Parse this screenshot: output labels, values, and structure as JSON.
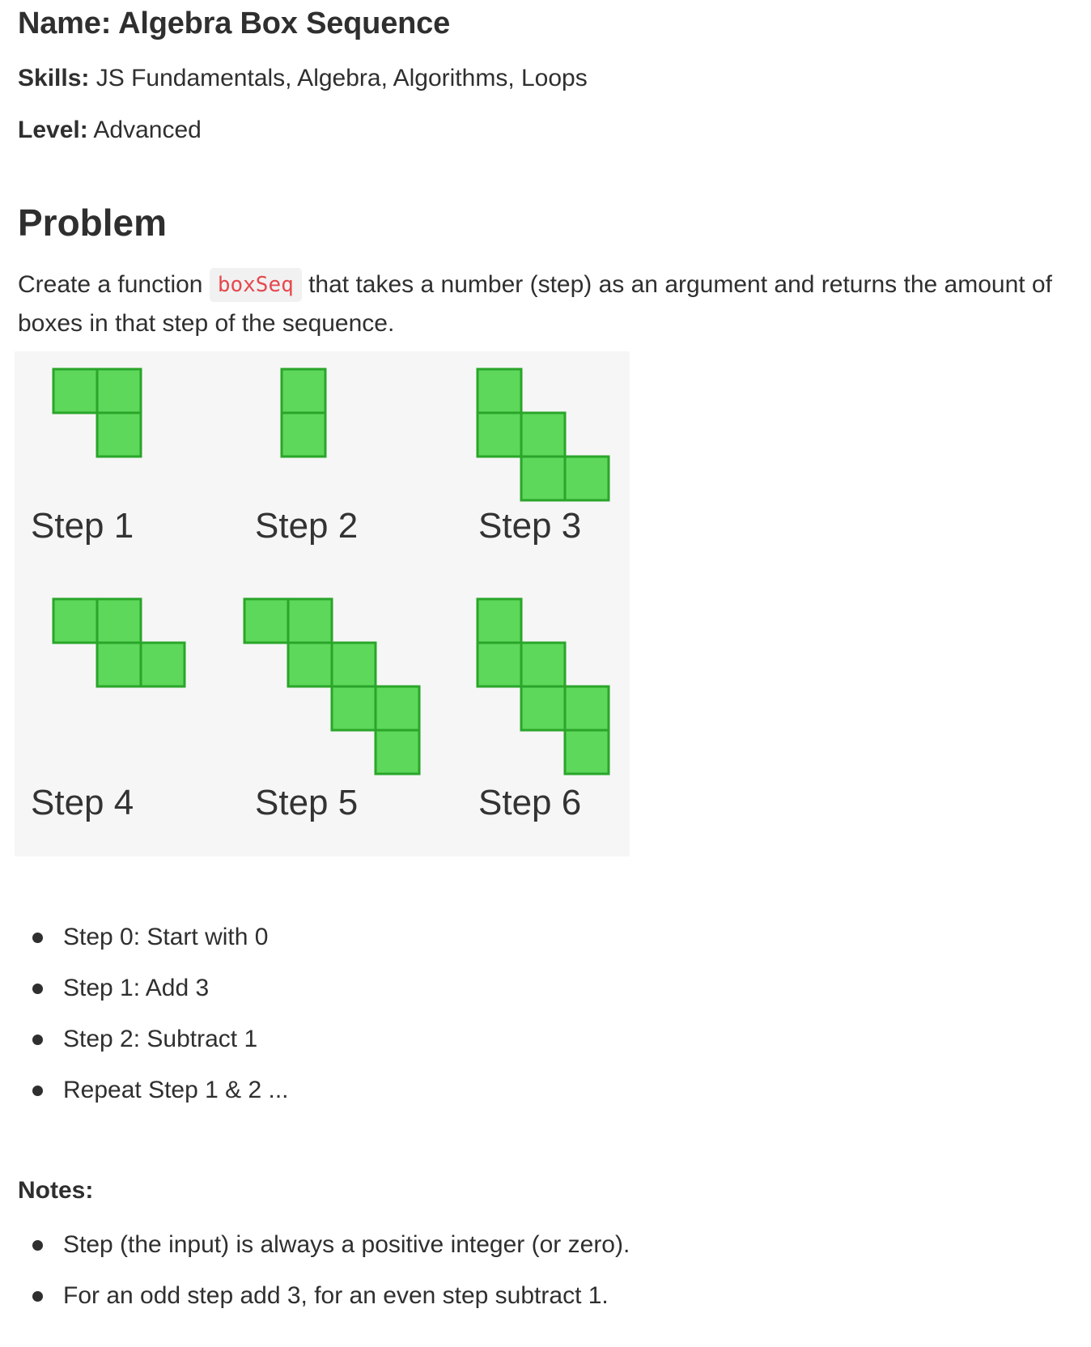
{
  "header": {
    "name_label": "Name:",
    "name_value": "Algebra Box Sequence",
    "skills_label": "Skills:",
    "skills_value": "JS Fundamentals, Algebra, Algorithms, Loops",
    "level_label": "Level:",
    "level_value": "Advanced"
  },
  "problem": {
    "heading": "Problem",
    "intro_before": "Create a function",
    "function_name": "boxSeq",
    "intro_after": "that takes a number (step) as an argument and returns the amount of boxes in that step of the sequence."
  },
  "figure": {
    "box_fill": "#5ed85a",
    "box_stroke": "#2aa52a",
    "background": "#f6f6f6",
    "steps": [
      {
        "label": "Step 1",
        "boxes": 3
      },
      {
        "label": "Step 2",
        "boxes": 2
      },
      {
        "label": "Step 3",
        "boxes": 5
      },
      {
        "label": "Step 4",
        "boxes": 4
      },
      {
        "label": "Step 5",
        "boxes": 7
      },
      {
        "label": "Step 6",
        "boxes": 6
      }
    ]
  },
  "rules": [
    "Step 0: Start with 0",
    "Step 1: Add 3",
    "Step 2: Subtract 1",
    "Repeat Step 1 & 2 ..."
  ],
  "notes": {
    "heading": "Notes:",
    "items": [
      "Step (the input) is always a positive integer (or zero).",
      "For an odd step add 3, for an even step subtract 1."
    ]
  }
}
